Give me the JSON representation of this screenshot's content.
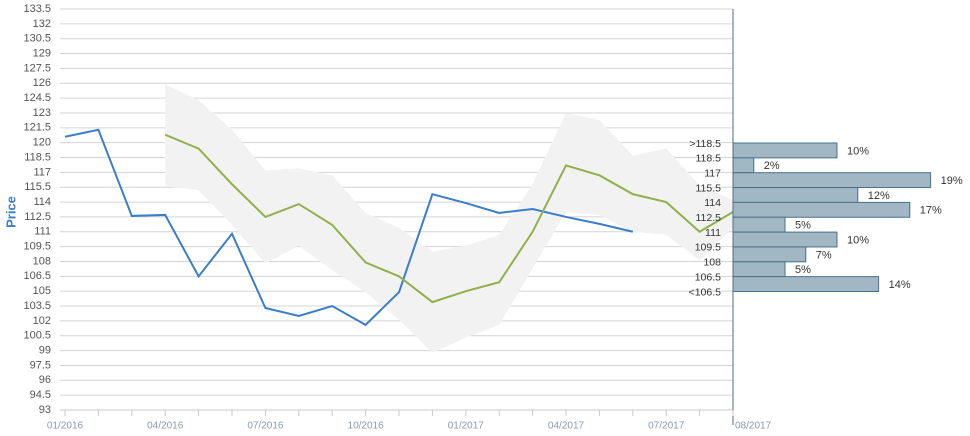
{
  "chart_data": [
    {
      "type": "line",
      "y_label": "Price",
      "categories": [
        "01/2016",
        null,
        null,
        "04/2016",
        null,
        null,
        "07/2016",
        null,
        null,
        "10/2016",
        null,
        null,
        "01/2017",
        null,
        null,
        "04/2017",
        null,
        null,
        "07/2017",
        null,
        "08/2017"
      ],
      "ylim": [
        93,
        133.5
      ],
      "yticks": [
        93,
        94.5,
        96,
        97.5,
        99,
        100.5,
        102,
        103.5,
        105,
        106.5,
        108,
        109.5,
        111,
        112.5,
        114,
        115.5,
        117,
        118.5,
        120,
        121.5,
        123,
        124.5,
        126,
        127.5,
        129,
        130.5,
        132,
        133.5
      ],
      "grid": true,
      "band": {
        "color": "#f2f2f2",
        "upper": [
          null,
          null,
          null,
          125.9,
          124.3,
          121.3,
          117.2,
          117.4,
          116.7,
          112.9,
          111.4,
          109.0,
          109.6,
          110.7,
          115.8,
          123.0,
          122.3,
          118.7,
          119.4,
          115.7,
          114.2
        ],
        "lower": [
          null,
          null,
          null,
          115.6,
          115.2,
          111.7,
          107.8,
          109.6,
          107.1,
          104.9,
          102.1,
          98.8,
          100.3,
          101.6,
          107.3,
          113.0,
          112.7,
          111.0,
          110.7,
          108.1,
          111.4
        ]
      },
      "series": [
        {
          "color": "#3a7dc9",
          "values": [
            120.6,
            121.3,
            112.6,
            112.7,
            106.5,
            110.8,
            103.3,
            102.5,
            103.5,
            101.6,
            104.9,
            114.8,
            113.9,
            112.9,
            113.3,
            112.5,
            111.8,
            111.0,
            null,
            null,
            null
          ]
        },
        {
          "color": "#8fb04a",
          "values": [
            null,
            null,
            null,
            120.8,
            119.4,
            115.8,
            112.5,
            113.8,
            111.7,
            107.9,
            106.5,
            103.9,
            105.0,
            105.9,
            111.0,
            117.7,
            116.7,
            114.8,
            114.0,
            111.0,
            113.0
          ]
        }
      ]
    },
    {
      "type": "hbar",
      "color": "#a1b7c4",
      "bin_labels": [
        ">118.5",
        "118.5",
        "117",
        "115.5",
        "114",
        "112.5",
        "111",
        "109.5",
        "108",
        "106.5",
        "<106.5"
      ],
      "values": [
        10,
        2,
        19,
        12,
        17,
        5,
        10,
        7,
        5,
        14
      ],
      "value_labels": [
        "10%",
        "2%",
        "19%",
        "12%",
        "17%",
        "5%",
        "10%",
        "7%",
        "5%",
        "14%"
      ]
    }
  ]
}
